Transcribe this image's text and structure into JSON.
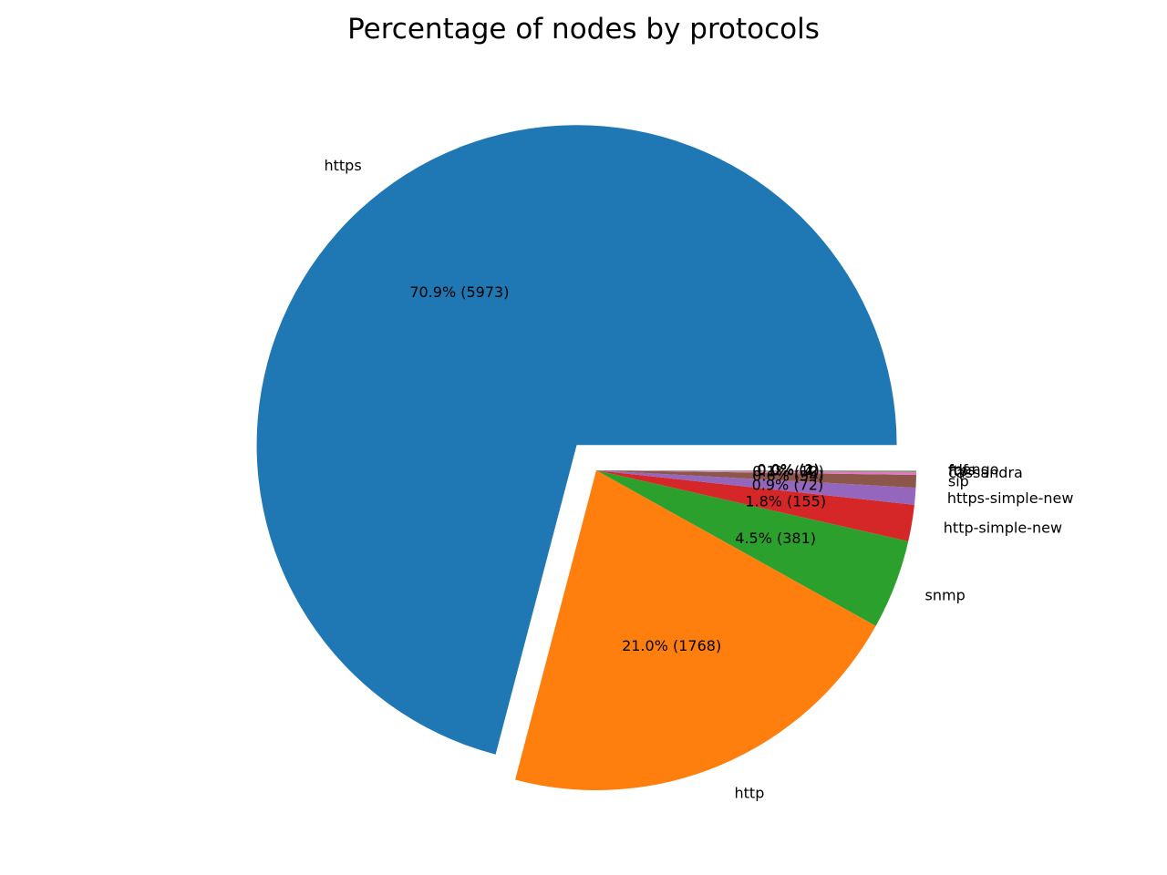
{
  "chart_data": {
    "type": "pie",
    "title": "Percentage of nodes by protocols",
    "slices": [
      {
        "label": "https",
        "value": 5973,
        "pct_label": "70.9% (5973)",
        "color": "#1f77b4",
        "explode": true
      },
      {
        "label": "http",
        "value": 1768,
        "pct_label": "21.0% (1768)",
        "color": "#ff7f0e",
        "explode": false
      },
      {
        "label": "snmp",
        "value": 381,
        "pct_label": "4.5% (381)",
        "color": "#2ca02c",
        "explode": false
      },
      {
        "label": "http-simple-new",
        "value": 155,
        "pct_label": "1.8% (155)",
        "color": "#d62728",
        "explode": false
      },
      {
        "label": "https-simple-new",
        "value": 72,
        "pct_label": "0.9% (72)",
        "color": "#9467bd",
        "explode": false
      },
      {
        "label": "sip",
        "value": 54,
        "pct_label": "0.6% (54)",
        "color": "#8c564b",
        "explode": false
      },
      {
        "label": "cassandra",
        "value": 12,
        "pct_label": "0.1% (12)",
        "color": "#e377c2",
        "explode": false
      },
      {
        "label": "ftp",
        "value": 4,
        "pct_label": "0.0% (4)",
        "color": "#7f7f7f",
        "explode": false
      },
      {
        "label": "fdfs",
        "value": 2,
        "pct_label": "0.0% (2)",
        "color": "#bcbd22",
        "explode": false
      },
      {
        "label": "mongo",
        "value": 1,
        "pct_label": "0.0% (1)",
        "color": "#17becf",
        "explode": false
      }
    ]
  }
}
